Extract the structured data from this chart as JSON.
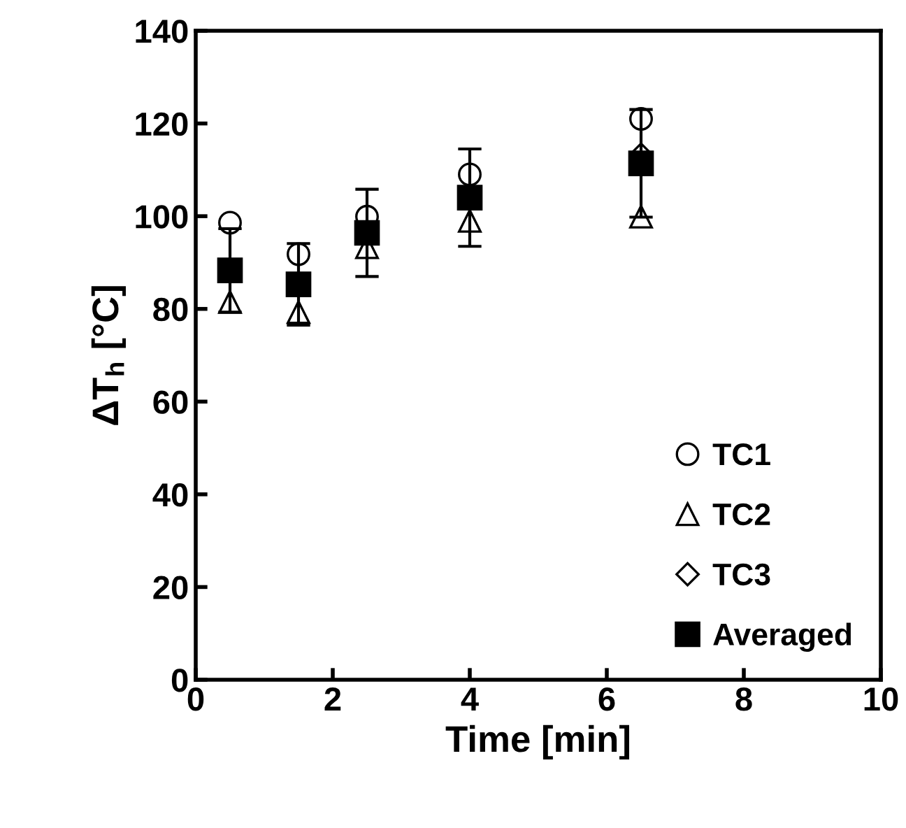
{
  "chart_data": {
    "type": "scatter",
    "xlabel": "Time [min]",
    "ylabel": "ΔT$_{h}$ [°C]",
    "x": [
      0.5,
      1.5,
      2.5,
      4,
      6.5
    ],
    "series": [
      {
        "name": "TC1",
        "color": "#000000",
        "marker": "circle",
        "values": [
          98.6,
          91.8,
          99.9,
          109,
          121
        ]
      },
      {
        "name": "TC2",
        "color": "#000000",
        "marker": "triangle",
        "values": [
          81.5,
          79.3,
          93.3,
          99,
          99.9
        ]
      },
      {
        "name": "TC3",
        "color": "#000000",
        "marker": "diamond",
        "values": [
          null,
          null,
          null,
          null,
          113.3
        ]
      },
      {
        "name": "Averaged",
        "color": "#000000",
        "marker": "square",
        "values": [
          88.3,
          85.3,
          96.4,
          104,
          111.4
        ],
        "errors": [
          9,
          8.8,
          9.4,
          10.5,
          11.6
        ]
      }
    ],
    "xlim": [
      0,
      10
    ],
    "xticks": [
      0,
      2,
      4,
      6,
      8,
      10
    ],
    "ylim": [
      0,
      140
    ],
    "yticks": [
      0,
      20,
      40,
      60,
      80,
      100,
      120,
      140
    ],
    "grid": false,
    "legend": "bottom right"
  }
}
